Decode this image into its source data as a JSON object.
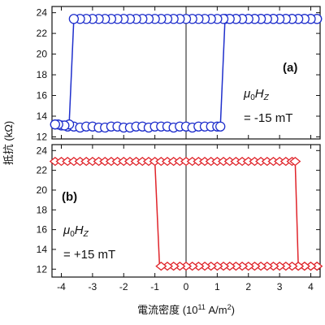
{
  "chart_data": [
    {
      "type": "line",
      "panel_label": "(a)",
      "field_label": "μ0HZ",
      "field_value": "= -15 mT",
      "xlim": [
        -4.3,
        4.3
      ],
      "ylim": [
        11.8,
        24.6
      ],
      "yticks": [
        "12",
        "14",
        "16",
        "18",
        "20",
        "22",
        "24"
      ],
      "color": "#1f2fcc",
      "marker": "circle",
      "series": [
        {
          "x": [
            -4.2,
            -4.0,
            -3.8,
            -3.6,
            -3.4,
            -3.2,
            -3.0,
            -2.8,
            -2.6,
            -2.4,
            -2.2,
            -2.0,
            -1.8,
            -1.6,
            -1.4,
            -1.2,
            -1.0,
            -0.8,
            -0.6,
            -0.4,
            -0.2,
            0.0,
            0.2,
            0.4,
            0.6,
            0.8,
            1.0,
            1.1
          ],
          "y": [
            13.2,
            13.1,
            13.0,
            13.0,
            12.9,
            13.0,
            13.0,
            12.9,
            12.9,
            13.0,
            13.0,
            12.9,
            12.9,
            13.0,
            13.0,
            12.9,
            13.0,
            13.0,
            13.0,
            12.9,
            13.0,
            13.0,
            12.9,
            13.0,
            13.0,
            13.0,
            13.0,
            13.0
          ]
        },
        {
          "x": [
            1.1,
            1.25
          ],
          "y": [
            13.0,
            23.4
          ]
        },
        {
          "x": [
            1.25,
            1.4,
            1.6,
            1.8,
            2.0,
            2.2,
            2.4,
            2.6,
            2.8,
            3.0,
            3.2,
            3.4,
            3.6,
            3.8,
            4.0,
            4.2
          ],
          "y": [
            23.4,
            23.4,
            23.4,
            23.4,
            23.4,
            23.4,
            23.4,
            23.4,
            23.4,
            23.4,
            23.4,
            23.4,
            23.4,
            23.4,
            23.4,
            23.4
          ]
        },
        {
          "x": [
            4.2,
            4.0,
            3.8,
            3.6,
            3.4,
            3.2,
            3.0,
            2.8,
            2.6,
            2.4,
            2.2,
            2.0,
            1.8,
            1.6,
            1.4,
            1.2,
            1.0,
            0.8,
            0.6,
            0.4,
            0.2,
            0.0,
            -0.2,
            -0.4,
            -0.6,
            -0.8,
            -1.0,
            -1.2,
            -1.4,
            -1.6,
            -1.8,
            -2.0,
            -2.2,
            -2.4,
            -2.6,
            -2.8,
            -3.0,
            -3.2,
            -3.4,
            -3.6
          ],
          "y": [
            23.4,
            23.4,
            23.4,
            23.4,
            23.4,
            23.4,
            23.4,
            23.4,
            23.4,
            23.4,
            23.4,
            23.4,
            23.4,
            23.4,
            23.4,
            23.4,
            23.4,
            23.4,
            23.4,
            23.4,
            23.4,
            23.4,
            23.4,
            23.4,
            23.4,
            23.4,
            23.4,
            23.4,
            23.4,
            23.4,
            23.4,
            23.4,
            23.4,
            23.4,
            23.4,
            23.4,
            23.4,
            23.4,
            23.4,
            23.4
          ]
        },
        {
          "x": [
            -3.6,
            -3.75
          ],
          "y": [
            23.4,
            13.2
          ]
        },
        {
          "x": [
            -3.75,
            -3.9,
            -4.1,
            -4.2
          ],
          "y": [
            13.2,
            13.1,
            13.2,
            13.2
          ]
        }
      ]
    },
    {
      "type": "line",
      "panel_label": "(b)",
      "field_label": "μ0HZ",
      "field_value": "= +15 mT",
      "xlim": [
        -4.3,
        4.3
      ],
      "ylim": [
        11.2,
        24.6
      ],
      "yticks": [
        "12",
        "14",
        "16",
        "18",
        "20",
        "22",
        "24"
      ],
      "xticks": [
        "-4",
        "-3",
        "-2",
        "-1",
        "0",
        "1",
        "2",
        "3",
        "4"
      ],
      "color": "#e0242a",
      "marker": "diamond",
      "series": [
        {
          "x": [
            -4.2,
            -4.0,
            -3.8,
            -3.6,
            -3.4,
            -3.2,
            -3.0,
            -2.8,
            -2.6,
            -2.4,
            -2.2,
            -2.0,
            -1.8,
            -1.6,
            -1.4,
            -1.2,
            -1.0,
            -0.8,
            -0.6,
            -0.4,
            -0.2,
            0.0,
            0.2,
            0.4,
            0.6,
            0.8,
            1.0,
            1.2,
            1.4,
            1.6,
            1.8,
            2.0,
            2.2,
            2.4,
            2.6,
            2.8,
            3.0,
            3.2,
            3.4,
            3.5
          ],
          "y": [
            22.9,
            22.9,
            22.9,
            22.9,
            22.9,
            22.9,
            22.9,
            22.9,
            22.9,
            22.9,
            22.9,
            22.9,
            22.9,
            22.9,
            22.9,
            22.9,
            22.9,
            22.9,
            22.9,
            22.9,
            22.9,
            22.9,
            22.9,
            22.9,
            22.9,
            22.9,
            22.9,
            22.9,
            22.9,
            22.9,
            22.9,
            22.9,
            22.9,
            22.9,
            22.9,
            22.9,
            22.9,
            22.9,
            22.9,
            22.9
          ]
        },
        {
          "x": [
            3.5,
            3.6
          ],
          "y": [
            22.9,
            12.3
          ]
        },
        {
          "x": [
            3.6,
            3.8,
            4.0,
            4.2
          ],
          "y": [
            12.3,
            12.3,
            12.3,
            12.3
          ]
        },
        {
          "x": [
            4.2,
            4.0,
            3.8,
            3.6,
            3.4,
            3.2,
            3.0,
            2.8,
            2.6,
            2.4,
            2.2,
            2.0,
            1.8,
            1.6,
            1.4,
            1.2,
            1.0,
            0.8,
            0.6,
            0.4,
            0.2,
            0.0,
            -0.2,
            -0.4,
            -0.6,
            -0.8
          ],
          "y": [
            12.3,
            12.3,
            12.3,
            12.3,
            12.3,
            12.3,
            12.3,
            12.3,
            12.3,
            12.3,
            12.3,
            12.3,
            12.3,
            12.3,
            12.3,
            12.3,
            12.3,
            12.3,
            12.3,
            12.3,
            12.3,
            12.3,
            12.3,
            12.3,
            12.3,
            12.3
          ]
        },
        {
          "x": [
            -0.85,
            -1.0
          ],
          "y": [
            12.3,
            22.9
          ]
        }
      ]
    }
  ],
  "axes": {
    "ylabel": "抵抗 (kΩ)",
    "xlabel_main": "電流密度 (10",
    "xlabel_exp": "11",
    "xlabel_unit": " A/m",
    "xlabel_unit_exp": "2",
    "xlabel_close": ")"
  },
  "labels": {
    "a_panel": "(a)",
    "a_field_mu": "μ",
    "a_field_sub0": "0",
    "a_field_H": "H",
    "a_field_subZ": "Z",
    "a_field_value": "= -15 mT",
    "b_panel": "(b)",
    "b_field_mu": "μ",
    "b_field_sub0": "0",
    "b_field_H": "H",
    "b_field_subZ": "Z",
    "b_field_value": "= +15 mT"
  }
}
